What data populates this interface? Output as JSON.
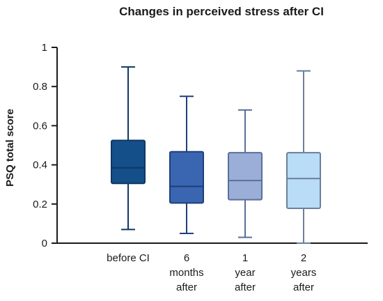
{
  "chart_data": {
    "type": "box",
    "title": "Changes in perceived stress after CI",
    "xlabel": "",
    "ylabel": "PSQ total score",
    "ylim": [
      0,
      1
    ],
    "yticks": [
      "0",
      "0.2",
      "0.4",
      "0.6",
      "0.8",
      "1"
    ],
    "categories": [
      [
        "before CI"
      ],
      [
        "6",
        "months",
        "after"
      ],
      [
        "1",
        "year",
        "after"
      ],
      [
        "2",
        "years",
        "after"
      ]
    ],
    "boxes": [
      {
        "min": 0.07,
        "q1": 0.305,
        "median": 0.385,
        "q3": 0.525,
        "max": 0.9,
        "fill": "#154f8a",
        "stroke": "#0d3765"
      },
      {
        "min": 0.05,
        "q1": 0.205,
        "median": 0.29,
        "q3": 0.467,
        "max": 0.75,
        "fill": "#3a65b0",
        "stroke": "#1f3f7a"
      },
      {
        "min": 0.03,
        "q1": 0.222,
        "median": 0.32,
        "q3": 0.462,
        "max": 0.68,
        "fill": "#9aaed8",
        "stroke": "#5a6f9a"
      },
      {
        "min": 0.0,
        "q1": 0.178,
        "median": 0.33,
        "q3": 0.462,
        "max": 0.88,
        "fill": "#b9dcf7",
        "stroke": "#6a7f99"
      }
    ],
    "grid": false,
    "legend": "none"
  }
}
